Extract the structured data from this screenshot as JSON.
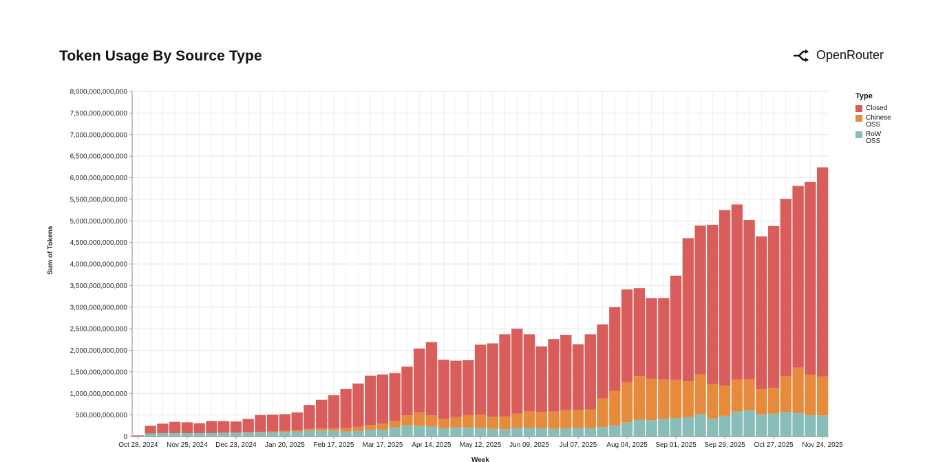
{
  "header": {
    "title": "Token Usage By Source Type",
    "brand": "OpenRouter"
  },
  "chart_data": {
    "type": "bar",
    "stacked": true,
    "title": "Token Usage By Source Type",
    "xlabel": "Week",
    "ylabel": "Sum of Tokens",
    "ylim": [
      0,
      8000000000000
    ],
    "yticks": [
      0,
      500000000000,
      1000000000000,
      1500000000000,
      2000000000000,
      2500000000000,
      3000000000000,
      3500000000000,
      4000000000000,
      4500000000000,
      5000000000000,
      5500000000000,
      6000000000000,
      6500000000000,
      7000000000000,
      7500000000000,
      8000000000000
    ],
    "xtick_labels": [
      "Oct 28, 2024",
      "Nov 25, 2024",
      "Dec 23, 2024",
      "Jan 20, 2025",
      "Feb 17, 2025",
      "Mar 17, 2025",
      "Apr 14, 2025",
      "May 12, 2025",
      "Jun 09, 2025",
      "Jul 07, 2025",
      "Aug 04, 2025",
      "Sep 01, 2025",
      "Sep 29, 2025",
      "Oct 27, 2025",
      "Nov 24, 2025"
    ],
    "grid": true,
    "legend": {
      "title": "Type",
      "placement": "right"
    },
    "categories": [
      "Oct 28, 2024",
      "Nov 04, 2024",
      "Nov 11, 2024",
      "Nov 18, 2024",
      "Nov 25, 2024",
      "Dec 02, 2024",
      "Dec 09, 2024",
      "Dec 16, 2024",
      "Dec 23, 2024",
      "Dec 30, 2024",
      "Jan 06, 2025",
      "Jan 13, 2025",
      "Jan 20, 2025",
      "Jan 27, 2025",
      "Feb 03, 2025",
      "Feb 10, 2025",
      "Feb 17, 2025",
      "Feb 24, 2025",
      "Mar 03, 2025",
      "Mar 10, 2025",
      "Mar 17, 2025",
      "Mar 24, 2025",
      "Mar 31, 2025",
      "Apr 07, 2025",
      "Apr 14, 2025",
      "Apr 21, 2025",
      "Apr 28, 2025",
      "May 05, 2025",
      "May 12, 2025",
      "May 19, 2025",
      "May 26, 2025",
      "Jun 02, 2025",
      "Jun 09, 2025",
      "Jun 16, 2025",
      "Jun 23, 2025",
      "Jun 30, 2025",
      "Jul 07, 2025",
      "Jul 14, 2025",
      "Jul 21, 2025",
      "Jul 28, 2025",
      "Aug 04, 2025",
      "Aug 11, 2025",
      "Aug 18, 2025",
      "Aug 25, 2025",
      "Sep 01, 2025",
      "Sep 08, 2025",
      "Sep 15, 2025",
      "Sep 22, 2025",
      "Sep 29, 2025",
      "Oct 06, 2025",
      "Oct 13, 2025",
      "Oct 20, 2025",
      "Oct 27, 2025",
      "Nov 03, 2025",
      "Nov 10, 2025",
      "Nov 17, 2025",
      "Nov 24, 2025"
    ],
    "series": [
      {
        "name": "RoW OSS",
        "color": "#88bdb8",
        "values": [
          20000000000,
          70000000000,
          80000000000,
          80000000000,
          80000000000,
          80000000000,
          80000000000,
          90000000000,
          90000000000,
          90000000000,
          100000000000,
          100000000000,
          110000000000,
          120000000000,
          140000000000,
          140000000000,
          140000000000,
          120000000000,
          130000000000,
          160000000000,
          160000000000,
          210000000000,
          260000000000,
          250000000000,
          230000000000,
          190000000000,
          210000000000,
          210000000000,
          200000000000,
          180000000000,
          170000000000,
          200000000000,
          200000000000,
          190000000000,
          180000000000,
          190000000000,
          200000000000,
          200000000000,
          220000000000,
          260000000000,
          330000000000,
          390000000000,
          380000000000,
          410000000000,
          430000000000,
          450000000000,
          520000000000,
          420000000000,
          480000000000,
          580000000000,
          610000000000,
          520000000000,
          530000000000,
          570000000000,
          550000000000,
          500000000000,
          490000000000
        ]
      },
      {
        "name": "Chinese OSS",
        "color": "#e68a3c",
        "values": [
          0,
          0,
          0,
          0,
          0,
          0,
          0,
          0,
          0,
          10000000000,
          10000000000,
          20000000000,
          20000000000,
          30000000000,
          40000000000,
          50000000000,
          60000000000,
          80000000000,
          100000000000,
          110000000000,
          140000000000,
          150000000000,
          230000000000,
          310000000000,
          260000000000,
          220000000000,
          240000000000,
          290000000000,
          310000000000,
          280000000000,
          300000000000,
          330000000000,
          390000000000,
          380000000000,
          400000000000,
          420000000000,
          420000000000,
          430000000000,
          660000000000,
          800000000000,
          930000000000,
          1010000000000,
          960000000000,
          920000000000,
          880000000000,
          840000000000,
          920000000000,
          800000000000,
          700000000000,
          740000000000,
          720000000000,
          580000000000,
          600000000000,
          830000000000,
          1050000000000,
          930000000000,
          900000000000
        ]
      },
      {
        "name": "Closed",
        "color": "#d95d5a",
        "values": [
          10000000000,
          180000000000,
          220000000000,
          260000000000,
          250000000000,
          230000000000,
          280000000000,
          270000000000,
          260000000000,
          310000000000,
          390000000000,
          390000000000,
          390000000000,
          410000000000,
          550000000000,
          660000000000,
          760000000000,
          900000000000,
          1000000000000,
          1140000000000,
          1140000000000,
          1110000000000,
          1130000000000,
          1480000000000,
          1700000000000,
          1370000000000,
          1310000000000,
          1270000000000,
          1620000000000,
          1700000000000,
          1900000000000,
          1970000000000,
          1780000000000,
          1520000000000,
          1680000000000,
          1750000000000,
          1520000000000,
          1740000000000,
          1720000000000,
          1940000000000,
          2150000000000,
          2040000000000,
          1870000000000,
          1880000000000,
          2420000000000,
          3310000000000,
          3450000000000,
          3690000000000,
          4070000000000,
          4060000000000,
          3690000000000,
          3540000000000,
          3750000000000,
          4110000000000,
          4210000000000,
          4470000000000,
          4850000000000
        ]
      }
    ]
  },
  "legend_items": [
    {
      "name": "Closed",
      "color": "#d95d5a"
    },
    {
      "name": "Chinese OSS",
      "color": "#e68a3c"
    },
    {
      "name": "RoW OSS",
      "color": "#88bdb8"
    }
  ]
}
